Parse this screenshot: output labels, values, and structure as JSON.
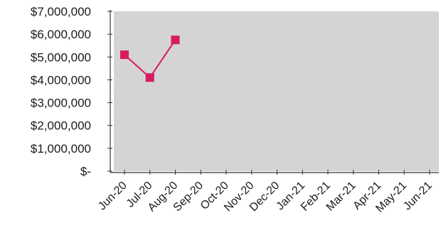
{
  "chart_data": {
    "type": "line",
    "categories": [
      "Jun-20",
      "Jul-20",
      "Aug-20",
      "Sep-20",
      "Oct-20",
      "Nov-20",
      "Dec-20",
      "Jan-21",
      "Feb-21",
      "Mar-21",
      "Apr-21",
      "May-21",
      "Jun-21"
    ],
    "ytick_labels": [
      "$7,000,000",
      "$6,000,000",
      "$5,000,000",
      "$4,000,000",
      "$3,000,000",
      "$2,000,000",
      "$1,000,000",
      "$-"
    ],
    "ytick_values": [
      7000000,
      6000000,
      5000000,
      4000000,
      3000000,
      2000000,
      1000000,
      0
    ],
    "ylim": [
      0,
      7000000
    ],
    "series": [
      {
        "values": [
          5100000,
          4100000,
          5750000,
          null,
          null,
          null,
          null,
          null,
          null,
          null,
          null,
          null,
          null
        ],
        "color": "#d81b60",
        "marker": "square"
      }
    ],
    "grid": false,
    "plot_background": "#d4d4d4",
    "title": "",
    "xlabel": "",
    "ylabel": ""
  }
}
